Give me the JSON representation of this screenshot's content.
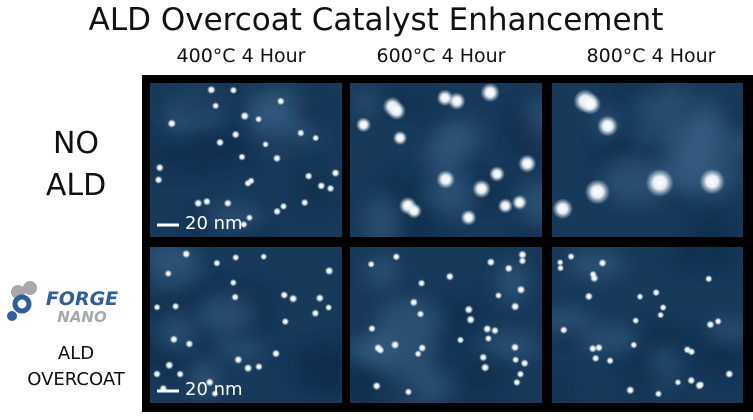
{
  "header": {
    "title": "ALD Overcoat Catalyst Enhancement"
  },
  "column_headers": [
    "400°C 4 Hour",
    "600°C 4 Hour",
    "800°C 4 Hour"
  ],
  "rows": [
    {
      "label_lines": [
        "NO",
        "ALD"
      ]
    },
    {
      "logo": {
        "line1": "FORGE",
        "line2": "NANO"
      },
      "label_lines": [
        "ALD",
        "OVERCOAT"
      ]
    }
  ],
  "scale_bar_label": "20 nm"
}
